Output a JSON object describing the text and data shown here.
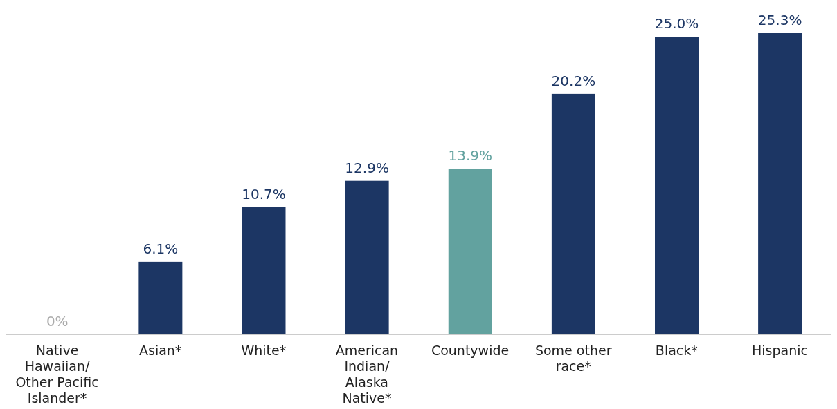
{
  "chart_data": {
    "type": "bar",
    "categories": [
      "Native Hawaiian/ Other Pacific Islander*",
      "Asian*",
      "White*",
      "American Indian/ Alaska Native*",
      "Countywide",
      "Some other race*",
      "Black*",
      "Hispanic"
    ],
    "values": [
      0,
      6.1,
      10.7,
      12.9,
      13.9,
      20.2,
      25.0,
      25.3
    ],
    "colors": [
      "#1c3664",
      "#1c3664",
      "#1c3664",
      "#1c3664",
      "#62a29f",
      "#1c3664",
      "#1c3664",
      "#1c3664"
    ],
    "value_labels": [
      "0%",
      "6.1%",
      "10.7%",
      "12.9%",
      "13.9%",
      "20.2%",
      "25.0%",
      "25.3%"
    ],
    "grid": false,
    "legend": false
  }
}
